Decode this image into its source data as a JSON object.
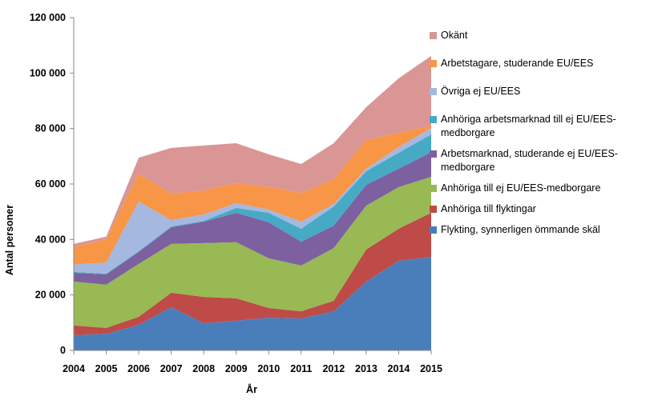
{
  "chart_data": {
    "type": "stacked_area",
    "x_label": "År",
    "y_label": "Antal personer",
    "categories": [
      "2004",
      "2005",
      "2006",
      "2007",
      "2008",
      "2009",
      "2010",
      "2011",
      "2012",
      "2013",
      "2014",
      "2015"
    ],
    "ylim": [
      0,
      120000
    ],
    "yticks": [
      0,
      {
        "value": 20000,
        "label": "20 000"
      },
      {
        "value": 40000,
        "label": "40 000"
      },
      {
        "value": 60000,
        "label": "60 000"
      },
      {
        "value": 80000,
        "label": "80 000"
      },
      {
        "value": 100000,
        "label": "100 000"
      },
      {
        "value": 120000,
        "label": "120 000"
      }
    ],
    "grid": false,
    "legend": "right",
    "series": [
      {
        "name": "Flykting, synnerligen ömmande skäl",
        "color": "#4a7ebb",
        "values": [
          5500,
          6000,
          9200,
          15600,
          9800,
          10700,
          11800,
          11500,
          14100,
          24800,
          32300,
          33700
        ]
      },
      {
        "name": "Anhöriga till flyktingar",
        "color": "#be4b48",
        "values": [
          3500,
          2100,
          2900,
          5200,
          9500,
          8100,
          3500,
          2600,
          3800,
          11600,
          11600,
          15900
        ]
      },
      {
        "name": "Anhöriga till ej EU/EES-medborgare",
        "color": "#98b954",
        "values": [
          15800,
          15600,
          19100,
          17600,
          19400,
          20200,
          17900,
          16500,
          19000,
          15800,
          15000,
          13000
        ]
      },
      {
        "name": "Arbetsmarknad, studerande ej EU/EES-medborgare",
        "color": "#7d60a0",
        "values": [
          3200,
          3700,
          4300,
          6000,
          7700,
          10600,
          13000,
          8600,
          8100,
          7500,
          6600,
          8900
        ]
      },
      {
        "name": "Anhöriga arbetsmarknad till ej EU/EES-medborgare",
        "color": "#46aac5",
        "values": [
          300,
          300,
          300,
          300,
          300,
          1800,
          3400,
          4700,
          6900,
          4900,
          5800,
          6400
        ]
      },
      {
        "name": "Övriga ej EU/EES",
        "color": "#a5b8e0",
        "values": [
          2600,
          4000,
          17900,
          2300,
          2300,
          1700,
          1200,
          2500,
          900,
          900,
          2000,
          2300
        ]
      },
      {
        "name": "Arbetstagare, studerande EU/EES",
        "color": "#f79646",
        "values": [
          6300,
          8400,
          10100,
          9500,
          8700,
          7200,
          8100,
          10400,
          8900,
          10400,
          5200,
          900
        ]
      },
      {
        "name": "Okänt",
        "color": "#d99694",
        "values": [
          1200,
          900,
          5700,
          16500,
          16200,
          14400,
          11800,
          10400,
          13000,
          11800,
          19600,
          25100
        ]
      }
    ]
  }
}
